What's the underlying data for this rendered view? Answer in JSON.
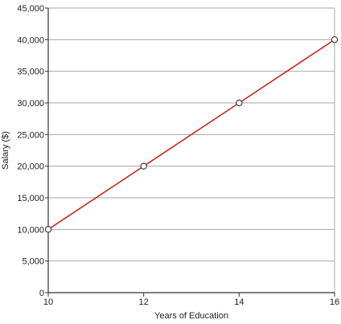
{
  "chart_data": {
    "type": "line",
    "title": "",
    "xlabel": "Years of Education",
    "ylabel": "Salary ($)",
    "xlim": [
      10,
      16
    ],
    "ylim": [
      0,
      45000
    ],
    "x_ticks": [
      10,
      12,
      14,
      16
    ],
    "x_tick_labels": [
      "10",
      "12",
      "14",
      "16"
    ],
    "y_ticks": [
      0,
      5000,
      10000,
      15000,
      20000,
      25000,
      30000,
      35000,
      40000,
      45000
    ],
    "y_tick_labels": [
      "0",
      "5,000",
      "10,000",
      "15,000",
      "20,000",
      "25,000",
      "30,000",
      "35,000",
      "40,000",
      "45,000"
    ],
    "grid": "horizontal",
    "legend": "none",
    "series": [
      {
        "x": [
          10,
          12,
          14,
          16
        ],
        "y": [
          10000,
          20000,
          30000,
          40000
        ],
        "line_color": "#c8281e",
        "marker": "open-circle"
      }
    ],
    "colors": {
      "line": "#c8281e",
      "grid": "#a8a8a8",
      "axis": "#333333",
      "marker_fill": "#ffffff",
      "marker_stroke": "#333333"
    }
  }
}
